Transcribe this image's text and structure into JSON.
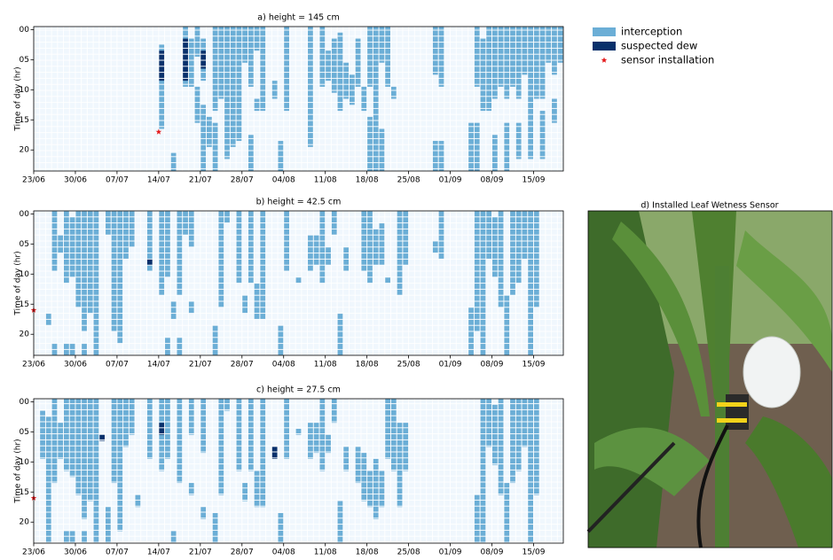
{
  "chart_data": [
    {
      "type": "heatmap",
      "title": "a) height = 145 cm",
      "ylabel": "Time of day (hr)",
      "xlim": [
        0,
        89
      ],
      "ylim": [
        23.5,
        -0.5
      ],
      "xticks": [
        {
          "value": 0,
          "label": "23/06"
        },
        {
          "value": 7,
          "label": "30/06"
        },
        {
          "value": 14,
          "label": "07/07"
        },
        {
          "value": 21,
          "label": "14/07"
        },
        {
          "value": 28,
          "label": "21/07"
        },
        {
          "value": 35,
          "label": "28/07"
        },
        {
          "value": 42,
          "label": "04/08"
        },
        {
          "value": 49,
          "label": "11/08"
        },
        {
          "value": 56,
          "label": "18/08"
        },
        {
          "value": 63,
          "label": "25/08"
        },
        {
          "value": 70,
          "label": "01/09"
        },
        {
          "value": 77,
          "label": "08/09"
        },
        {
          "value": 84,
          "label": "15/09"
        }
      ],
      "yticks": [
        {
          "value": 0,
          "label": "00"
        },
        {
          "value": 5,
          "label": "05"
        },
        {
          "value": 10,
          "label": "10"
        },
        {
          "value": 15,
          "label": "15"
        },
        {
          "value": 20,
          "label": "20"
        }
      ],
      "interception": [
        [
          23,
          21,
          3
        ],
        [
          21,
          3,
          14
        ],
        [
          25,
          0,
          10
        ],
        [
          26,
          2,
          8
        ],
        [
          27,
          0,
          5
        ],
        [
          27,
          10,
          6
        ],
        [
          28,
          2,
          7
        ],
        [
          28,
          13,
          11
        ],
        [
          29,
          15,
          5
        ],
        [
          30,
          0,
          14
        ],
        [
          30,
          16,
          8
        ],
        [
          31,
          0,
          12
        ],
        [
          32,
          0,
          22
        ],
        [
          33,
          0,
          20
        ],
        [
          34,
          0,
          19
        ],
        [
          35,
          0,
          6
        ],
        [
          36,
          0,
          10
        ],
        [
          36,
          18,
          6
        ],
        [
          37,
          0,
          4
        ],
        [
          37,
          12,
          2
        ],
        [
          38,
          0,
          14
        ],
        [
          40,
          9,
          3
        ],
        [
          41,
          19,
          5
        ],
        [
          42,
          0,
          14
        ],
        [
          46,
          0,
          20
        ],
        [
          48,
          0,
          10
        ],
        [
          49,
          4,
          5
        ],
        [
          50,
          2,
          9
        ],
        [
          51,
          1,
          13
        ],
        [
          52,
          6,
          6
        ],
        [
          53,
          8,
          5
        ],
        [
          54,
          2,
          8
        ],
        [
          55,
          10,
          4
        ],
        [
          56,
          0,
          10
        ],
        [
          56,
          15,
          9
        ],
        [
          57,
          0,
          24
        ],
        [
          58,
          0,
          6
        ],
        [
          58,
          17,
          7
        ],
        [
          59,
          0,
          10
        ],
        [
          60,
          10,
          2
        ],
        [
          67,
          0,
          8
        ],
        [
          67,
          19,
          5
        ],
        [
          68,
          0,
          10
        ],
        [
          68,
          19,
          5
        ],
        [
          73,
          16,
          8
        ],
        [
          74,
          0,
          10
        ],
        [
          74,
          16,
          8
        ],
        [
          75,
          2,
          12
        ],
        [
          76,
          0,
          14
        ],
        [
          77,
          0,
          12
        ],
        [
          77,
          18,
          6
        ],
        [
          78,
          0,
          10
        ],
        [
          79,
          0,
          12
        ],
        [
          79,
          16,
          8
        ],
        [
          80,
          0,
          10
        ],
        [
          81,
          0,
          12
        ],
        [
          81,
          16,
          6
        ],
        [
          82,
          0,
          8
        ],
        [
          83,
          0,
          22
        ],
        [
          84,
          0,
          12
        ],
        [
          85,
          0,
          12
        ],
        [
          85,
          14,
          8
        ],
        [
          86,
          0,
          6
        ],
        [
          87,
          0,
          8
        ],
        [
          87,
          12,
          4
        ],
        [
          88,
          0,
          6
        ]
      ],
      "dew": [
        [
          21,
          4,
          5
        ],
        [
          25,
          2,
          7
        ],
        [
          28,
          4,
          3
        ]
      ],
      "installation": [
        [
          21,
          17
        ]
      ]
    },
    {
      "type": "heatmap",
      "title": "b) height = 42.5 cm",
      "ylabel": "Time of day (hr)",
      "xlim": [
        0,
        89
      ],
      "ylim": [
        23.5,
        -0.5
      ],
      "xticks": [
        {
          "value": 0,
          "label": "23/06"
        },
        {
          "value": 7,
          "label": "30/06"
        },
        {
          "value": 14,
          "label": "07/07"
        },
        {
          "value": 21,
          "label": "14/07"
        },
        {
          "value": 28,
          "label": "21/07"
        },
        {
          "value": 35,
          "label": "28/07"
        },
        {
          "value": 42,
          "label": "04/08"
        },
        {
          "value": 49,
          "label": "11/08"
        },
        {
          "value": 56,
          "label": "18/08"
        },
        {
          "value": 63,
          "label": "25/08"
        },
        {
          "value": 70,
          "label": "01/09"
        },
        {
          "value": 77,
          "label": "08/09"
        },
        {
          "value": 84,
          "label": "15/09"
        }
      ],
      "yticks": [
        {
          "value": 0,
          "label": "00"
        },
        {
          "value": 5,
          "label": "05"
        },
        {
          "value": 10,
          "label": "10"
        },
        {
          "value": 15,
          "label": "15"
        },
        {
          "value": 20,
          "label": "20"
        }
      ],
      "interception": [
        [
          2,
          17,
          2
        ],
        [
          3,
          0,
          10
        ],
        [
          3,
          22,
          2
        ],
        [
          4,
          4,
          3
        ],
        [
          5,
          0,
          12
        ],
        [
          5,
          22,
          2
        ],
        [
          6,
          1,
          10
        ],
        [
          6,
          22,
          2
        ],
        [
          7,
          0,
          16
        ],
        [
          8,
          0,
          20
        ],
        [
          8,
          22,
          2
        ],
        [
          9,
          0,
          17
        ],
        [
          10,
          0,
          24
        ],
        [
          12,
          0,
          4
        ],
        [
          13,
          0,
          20
        ],
        [
          14,
          0,
          22
        ],
        [
          15,
          0,
          8
        ],
        [
          16,
          0,
          6
        ],
        [
          19,
          0,
          10
        ],
        [
          21,
          0,
          14
        ],
        [
          22,
          0,
          11
        ],
        [
          22,
          21,
          3
        ],
        [
          23,
          15,
          3
        ],
        [
          24,
          0,
          14
        ],
        [
          24,
          21,
          3
        ],
        [
          25,
          0,
          4
        ],
        [
          26,
          0,
          6
        ],
        [
          26,
          15,
          2
        ],
        [
          30,
          19,
          5
        ],
        [
          31,
          0,
          16
        ],
        [
          32,
          0,
          2
        ],
        [
          34,
          0,
          12
        ],
        [
          35,
          14,
          3
        ],
        [
          36,
          0,
          12
        ],
        [
          37,
          12,
          6
        ],
        [
          38,
          0,
          18
        ],
        [
          41,
          19,
          5
        ],
        [
          42,
          0,
          10
        ],
        [
          44,
          11,
          1
        ],
        [
          46,
          4,
          6
        ],
        [
          47,
          4,
          5
        ],
        [
          48,
          0,
          12
        ],
        [
          49,
          6,
          3
        ],
        [
          50,
          0,
          4
        ],
        [
          51,
          17,
          7
        ],
        [
          52,
          6,
          4
        ],
        [
          55,
          0,
          10
        ],
        [
          56,
          0,
          12
        ],
        [
          57,
          3,
          6
        ],
        [
          58,
          2,
          7
        ],
        [
          59,
          11,
          1
        ],
        [
          61,
          0,
          14
        ],
        [
          62,
          0,
          9
        ],
        [
          67,
          5,
          2
        ],
        [
          68,
          0,
          8
        ],
        [
          73,
          16,
          8
        ],
        [
          74,
          0,
          20
        ],
        [
          75,
          0,
          24
        ],
        [
          76,
          0,
          8
        ],
        [
          77,
          1,
          10
        ],
        [
          78,
          0,
          16
        ],
        [
          79,
          14,
          10
        ],
        [
          80,
          0,
          14
        ],
        [
          81,
          0,
          12
        ],
        [
          82,
          0,
          8
        ],
        [
          83,
          0,
          24
        ],
        [
          84,
          0,
          16
        ]
      ],
      "dew": [
        [
          19,
          8,
          1
        ]
      ],
      "installation": [
        [
          0,
          16
        ]
      ]
    },
    {
      "type": "heatmap",
      "title": "c) height = 27.5 cm",
      "ylabel": "Time of day (hr)",
      "xlim": [
        0,
        89
      ],
      "ylim": [
        23.5,
        -0.5
      ],
      "xticks": [
        {
          "value": 0,
          "label": "23/06"
        },
        {
          "value": 7,
          "label": "30/06"
        },
        {
          "value": 14,
          "label": "07/07"
        },
        {
          "value": 21,
          "label": "14/07"
        },
        {
          "value": 28,
          "label": "21/07"
        },
        {
          "value": 35,
          "label": "28/07"
        },
        {
          "value": 42,
          "label": "04/08"
        },
        {
          "value": 49,
          "label": "11/08"
        },
        {
          "value": 56,
          "label": "18/08"
        },
        {
          "value": 63,
          "label": "25/08"
        },
        {
          "value": 70,
          "label": "01/09"
        },
        {
          "value": 77,
          "label": "08/09"
        },
        {
          "value": 84,
          "label": "15/09"
        }
      ],
      "yticks": [
        {
          "value": 0,
          "label": "00"
        },
        {
          "value": 5,
          "label": "05"
        },
        {
          "value": 10,
          "label": "10"
        },
        {
          "value": 15,
          "label": "15"
        },
        {
          "value": 20,
          "label": "20"
        }
      ],
      "interception": [
        [
          1,
          2,
          8
        ],
        [
          2,
          3,
          21
        ],
        [
          3,
          0,
          14
        ],
        [
          4,
          4,
          6
        ],
        [
          5,
          0,
          12
        ],
        [
          5,
          22,
          2
        ],
        [
          6,
          0,
          13
        ],
        [
          6,
          22,
          2
        ],
        [
          7,
          0,
          16
        ],
        [
          8,
          0,
          20
        ],
        [
          8,
          22,
          2
        ],
        [
          9,
          0,
          17
        ],
        [
          10,
          0,
          24
        ],
        [
          12,
          18,
          6
        ],
        [
          13,
          0,
          14
        ],
        [
          14,
          0,
          22
        ],
        [
          15,
          0,
          8
        ],
        [
          16,
          0,
          6
        ],
        [
          17,
          16,
          2
        ],
        [
          19,
          0,
          10
        ],
        [
          21,
          0,
          12
        ],
        [
          22,
          0,
          10
        ],
        [
          23,
          22,
          2
        ],
        [
          24,
          0,
          14
        ],
        [
          26,
          0,
          6
        ],
        [
          26,
          14,
          2
        ],
        [
          28,
          0,
          9
        ],
        [
          28,
          18,
          2
        ],
        [
          30,
          19,
          5
        ],
        [
          31,
          0,
          16
        ],
        [
          32,
          0,
          2
        ],
        [
          34,
          0,
          12
        ],
        [
          35,
          14,
          3
        ],
        [
          36,
          0,
          12
        ],
        [
          37,
          12,
          6
        ],
        [
          38,
          0,
          18
        ],
        [
          41,
          19,
          5
        ],
        [
          42,
          0,
          10
        ],
        [
          44,
          5,
          1
        ],
        [
          46,
          4,
          6
        ],
        [
          47,
          4,
          5
        ],
        [
          48,
          0,
          12
        ],
        [
          49,
          6,
          3
        ],
        [
          50,
          0,
          4
        ],
        [
          51,
          17,
          7
        ],
        [
          52,
          8,
          4
        ],
        [
          54,
          8,
          6
        ],
        [
          55,
          9,
          8
        ],
        [
          56,
          12,
          6
        ],
        [
          57,
          10,
          10
        ],
        [
          58,
          12,
          6
        ],
        [
          59,
          0,
          10
        ],
        [
          60,
          0,
          12
        ],
        [
          61,
          4,
          14
        ],
        [
          62,
          4,
          8
        ],
        [
          74,
          16,
          8
        ],
        [
          75,
          0,
          24
        ],
        [
          76,
          0,
          8
        ],
        [
          77,
          1,
          10
        ],
        [
          78,
          0,
          16
        ],
        [
          79,
          14,
          10
        ],
        [
          80,
          0,
          14
        ],
        [
          81,
          0,
          12
        ],
        [
          82,
          0,
          8
        ],
        [
          83,
          0,
          24
        ],
        [
          84,
          0,
          16
        ]
      ],
      "dew": [
        [
          11,
          6,
          1
        ],
        [
          21,
          4,
          2
        ],
        [
          40,
          8,
          2
        ]
      ],
      "installation": [
        [
          0,
          16
        ]
      ]
    }
  ],
  "legend": [
    {
      "name": "interception",
      "color": "#6baed6"
    },
    {
      "name": "suspected dew",
      "color": "#08306b"
    },
    {
      "name": "sensor installation",
      "color": "#e41a1c"
    }
  ],
  "photo": {
    "title": "d) Installed Leaf Wetness Sensor"
  }
}
